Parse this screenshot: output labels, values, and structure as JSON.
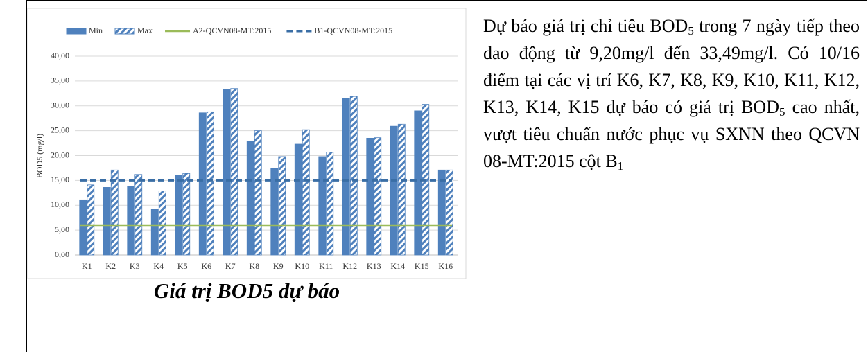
{
  "chart_data": {
    "type": "bar",
    "ylabel": "BOD5 (mg/l)",
    "categories": [
      "K1",
      "K2",
      "K3",
      "K4",
      "K5",
      "K6",
      "K7",
      "K8",
      "K9",
      "K10",
      "K11",
      "K12",
      "K13",
      "K14",
      "K15",
      "K16"
    ],
    "series": [
      {
        "name": "Min",
        "color": "#4f81bd",
        "values": [
          11.1,
          13.6,
          13.8,
          9.2,
          16.1,
          28.6,
          33.3,
          22.9,
          17.4,
          22.3,
          19.8,
          31.5,
          23.5,
          25.9,
          29.0,
          17.1
        ]
      },
      {
        "name": "Max",
        "color": "#4f81bd",
        "hatch": true,
        "values": [
          14.1,
          17.1,
          16.2,
          12.9,
          16.4,
          28.8,
          33.49,
          25.0,
          19.8,
          25.2,
          20.7,
          31.9,
          23.6,
          26.3,
          30.3,
          17.1
        ]
      }
    ],
    "reference_lines": [
      {
        "name": "A2-QCVN08-MT:2015",
        "value": 6,
        "color": "#9bbb59",
        "dashed": false
      },
      {
        "name": "B1-QCVN08-MT:2015",
        "value": 15,
        "color": "#3a6ea5",
        "dashed": true
      }
    ],
    "ylim": [
      0,
      40
    ],
    "yticks": [
      {
        "value": 0,
        "label": "0,00"
      },
      {
        "value": 5,
        "label": "5,00"
      },
      {
        "value": 10,
        "label": "10,00"
      },
      {
        "value": 15,
        "label": "15,00"
      },
      {
        "value": 20,
        "label": "20,00"
      },
      {
        "value": 25,
        "label": "25,00"
      },
      {
        "value": 30,
        "label": "30,00"
      },
      {
        "value": 35,
        "label": "35,00"
      },
      {
        "value": 40,
        "label": "40,00"
      }
    ],
    "grid": true
  },
  "caption": "Giá trị BOD5 dự báo",
  "paragraph": [
    "Dự báo giá trị chỉ tiêu BOD",
    "5",
    " trong 7 ngày tiếp theo dao động từ 9,20mg/l đến 33,49mg/l. Có 10/16 điểm tại các vị trí K6, K7, K8, K9, K10, K11, K12, K13, K14, K15 dự báo có giá trị BOD",
    "5",
    " cao nhất, vượt tiêu chuẩn nước phục vụ SXNN theo QCVN 08-MT:2015 cột B",
    "1"
  ]
}
